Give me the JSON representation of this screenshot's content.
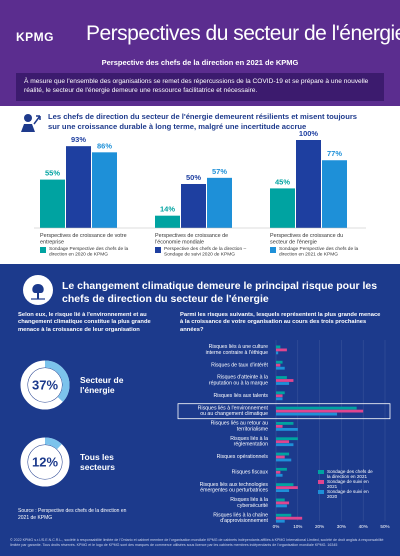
{
  "header": {
    "logo": "KPMG",
    "title": "Perspectives du secteur de l'énergie",
    "subtitle": "Perspective des chefs de la direction en 2021 de KPMG"
  },
  "intro": "À mesure que l'ensemble des organisations se remet des répercussions de la COVID-19 et se prépare à une nouvelle réalité, le secteur de l'énergie demeure une ressource facilitatrice et nécessaire.",
  "section1": {
    "heading": "Les chefs de direction du secteur de l'énergie demeurent résilients et misent toujours sur une croissance durable à long terme, malgré une incertitude accrue"
  },
  "section2": {
    "heading": "Le changement climatique demeure le principal risque pour les chefs de direction du secteur de l'énergie",
    "left_text": "Selon eux, le risque lié à l'environnement et au changement climatique constitue la plus grande menace à la croissance de leur organisation",
    "right_text": "Parmi les risques suivants, lesquels représentent la plus grande menace à la croissance de votre organisation au cours des trois prochaines années?",
    "source": "Source : Perspective des chefs de la direction en 2021 de KPMG"
  },
  "footer": "© 2022 KPMG s.r.l./S.E.N.C.R.L., société à responsabilité limitée de l'Ontario et cabinet membre de l'organisation mondiale KPMG de cabinets indépendants affiliés à KPMG International Limited, société de droit anglais à responsabilité limitée par garantie. Tous droits réservés. KPMG et le logo de KPMG sont des marques de commerce utilisées sous licence par les cabinets membres indépendants de l'organisation mondiale KPMG. 16345",
  "chart_data": [
    {
      "type": "bar",
      "categories": [
        "Perspectives de croissance de votre entreprise",
        "Perspectives de croissance de l'économie mondiale",
        "Perspectives de croissance du secteur de l'énergie"
      ],
      "series": [
        {
          "name": "Sondage Perspective des chefs de la direction en 2020 de KPMG",
          "color": "#00a3a1",
          "values": [
            55,
            14,
            45
          ],
          "value_labels": [
            "55%",
            "14%",
            "45%"
          ]
        },
        {
          "name": "Perspective des chefs de la direction – Sondage de suivi 2020 de KPMG",
          "color": "#1e3fa0",
          "values": [
            93,
            50,
            100
          ],
          "value_labels": [
            "93%",
            "50%",
            "100%"
          ]
        },
        {
          "name": "Sondage Perspective des chefs de la direction en 2021 de KPMG",
          "color": "#1e90d8",
          "values": [
            86,
            57,
            77
          ],
          "value_labels": [
            "86%",
            "57%",
            "77%"
          ]
        }
      ],
      "ylim": [
        0,
        100
      ],
      "grid": false
    },
    {
      "type": "donut",
      "categories": [
        "Secteur de l'énergie"
      ],
      "values": [
        37
      ],
      "value_labels": [
        "37%"
      ],
      "color": "#7cc3ec"
    },
    {
      "type": "donut",
      "categories": [
        "Tous les secteurs"
      ],
      "values": [
        12
      ],
      "value_labels": [
        "12%"
      ],
      "color": "#7cc3ec"
    },
    {
      "type": "hbar",
      "categories": [
        "Risques liés à une culture interne contraire à l'éthique",
        "Risques de taux d'intérêt",
        "Risques d'atteinte à la réputation ou à la marque",
        "Risques liés aux talents",
        "Risques liés à l'environnement ou au changement climatique",
        "Risques liés au retour au territorialisme",
        "Risques liés à la réglementation",
        "Risques opérationnels",
        "Risques fiscaux",
        "Risques liés aux technologies émergentes ou perturbatrices",
        "Risques liés à la cybersécurité",
        "Risques liés à la chaîne d'approvisionnement"
      ],
      "series": [
        {
          "name": "Sondage des chefs de la direction en 2021",
          "color": "#00a3a1",
          "values": [
            2,
            3,
            5,
            4,
            37,
            8,
            10,
            6,
            5,
            8,
            4,
            7
          ]
        },
        {
          "name": "Sondage de suivi en 2021",
          "color": "#e0458f",
          "values": [
            5,
            2,
            8,
            3,
            40,
            3,
            6,
            4,
            2,
            10,
            6,
            12
          ]
        },
        {
          "name": "Sondage de suivi en 2020",
          "color": "#1e90d8",
          "values": [
            1,
            4,
            6,
            3,
            28,
            10,
            8,
            7,
            3,
            6,
            5,
            4
          ]
        }
      ],
      "highlight": "Risques liés à l'environnement ou au changement climatique",
      "xlim": [
        0,
        50
      ],
      "xticks": [
        {
          "value": 0,
          "label": "0%"
        },
        {
          "value": 10,
          "label": "10%"
        },
        {
          "value": 20,
          "label": "20%"
        },
        {
          "value": 30,
          "label": "30%"
        },
        {
          "value": 40,
          "label": "40%"
        },
        {
          "value": 50,
          "label": "50%"
        }
      ],
      "grid": true
    }
  ]
}
